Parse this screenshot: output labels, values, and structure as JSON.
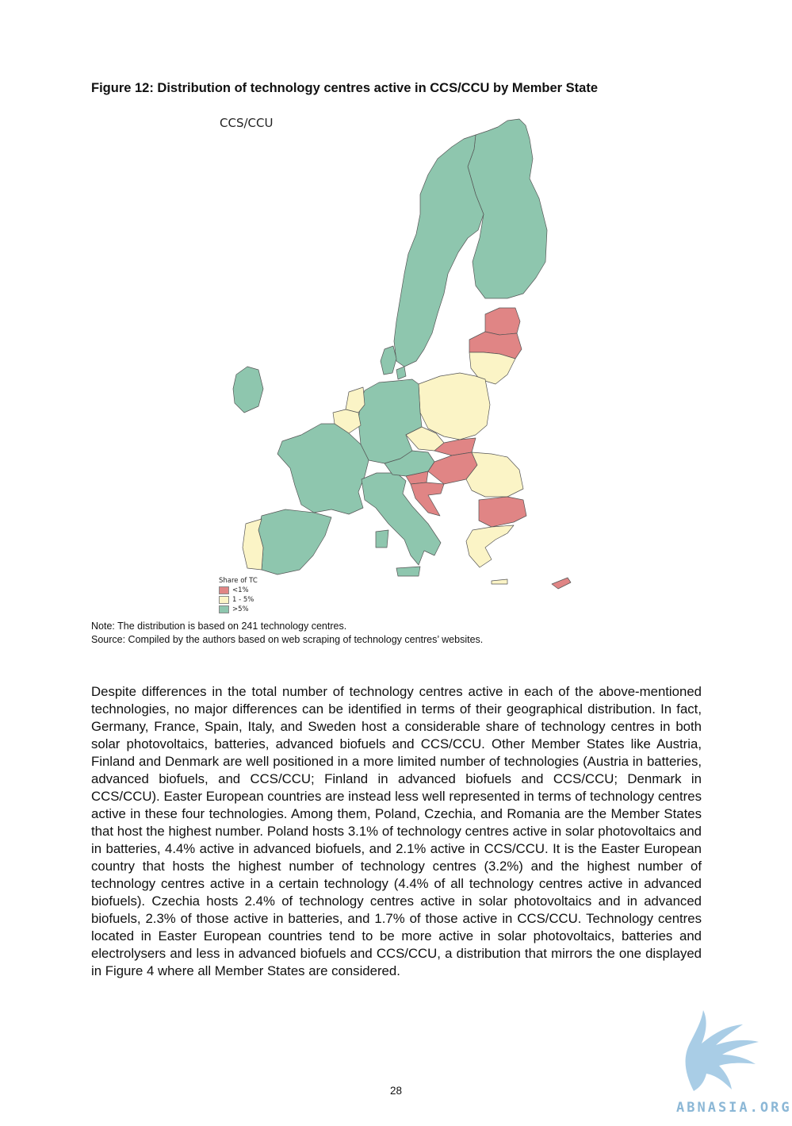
{
  "figure": {
    "title": "Figure 12: Distribution of technology centres active in CCS/CCU by Member State",
    "map_title": "CCS/CCU",
    "legend": {
      "title": "Share of TC",
      "items": [
        {
          "label": "<1%",
          "color": "#e08585"
        },
        {
          "label": "1 - 5%",
          "color": "#fbf4c6"
        },
        {
          "label": ">5%",
          "color": "#8ec6ae"
        }
      ]
    },
    "note": "Note: The distribution is based on 241 technology centres.",
    "source": "Source: Compiled by the authors based on web scraping of technology centres’ websites."
  },
  "map_data": {
    "countries": [
      {
        "name": "Sweden",
        "class": ">5%"
      },
      {
        "name": "Finland",
        "class": ">5%"
      },
      {
        "name": "Estonia",
        "class": "<1%"
      },
      {
        "name": "Latvia",
        "class": "<1%"
      },
      {
        "name": "Lithuania",
        "class": "1 - 5%"
      },
      {
        "name": "Poland",
        "class": "1 - 5%"
      },
      {
        "name": "Germany",
        "class": ">5%"
      },
      {
        "name": "Denmark",
        "class": ">5%"
      },
      {
        "name": "Netherlands",
        "class": "1 - 5%"
      },
      {
        "name": "Belgium",
        "class": "1 - 5%"
      },
      {
        "name": "Luxembourg",
        "class": "1 - 5%"
      },
      {
        "name": "France",
        "class": ">5%"
      },
      {
        "name": "Ireland",
        "class": ">5%"
      },
      {
        "name": "Spain",
        "class": ">5%"
      },
      {
        "name": "Portugal",
        "class": "1 - 5%"
      },
      {
        "name": "Italy",
        "class": ">5%"
      },
      {
        "name": "Austria",
        "class": ">5%"
      },
      {
        "name": "Czechia",
        "class": "1 - 5%"
      },
      {
        "name": "Slovakia",
        "class": "<1%"
      },
      {
        "name": "Hungary",
        "class": "<1%"
      },
      {
        "name": "Slovenia",
        "class": "<1%"
      },
      {
        "name": "Croatia",
        "class": "<1%"
      },
      {
        "name": "Romania",
        "class": "1 - 5%"
      },
      {
        "name": "Bulgaria",
        "class": "<1%"
      },
      {
        "name": "Greece",
        "class": "1 - 5%"
      },
      {
        "name": "Cyprus",
        "class": "<1%"
      },
      {
        "name": "Malta",
        "class": ">5%"
      }
    ]
  },
  "body_text": "Despite differences in the total number of technology centres active in each of the above-mentioned technologies, no major differences can be identified in terms of their geographical distribution. In fact, Germany, France, Spain, Italy, and Sweden host a considerable share of technology centres in both solar photovoltaics, batteries, advanced biofuels and CCS/CCU. Other Member States like Austria, Finland and Denmark are well positioned in a more limited number of technologies (Austria in batteries, advanced biofuels, and CCS/CCU; Finland in advanced biofuels and CCS/CCU; Denmark in CCS/CCU). Easter European countries are instead less well represented in terms of technology centres active in these four technologies. Among them, Poland, Czechia, and Romania are the Member States that host the highest number. Poland hosts 3.1% of technology centres active in solar photovoltaics and in batteries, 4.4% active in advanced biofuels, and 2.1% active in CCS/CCU. It is the Easter European country that hosts the highest number of technology centres (3.2%) and the highest number of technology centres active in a certain technology (4.4% of all technology centres active in advanced biofuels). Czechia hosts 2.4% of technology centres active in solar photovoltaics and in advanced biofuels, 2.3% of those active in batteries, and 1.7% of those active in CCS/CCU. Technology centres located in Easter European countries tend to be more active in solar photovoltaics, batteries and electrolysers and less in advanced biofuels and CCS/CCU, a distribution that mirrors the one displayed in Figure 4 where all Member States are considered.",
  "page_number": "28",
  "watermark": "ABNASIA.ORG"
}
